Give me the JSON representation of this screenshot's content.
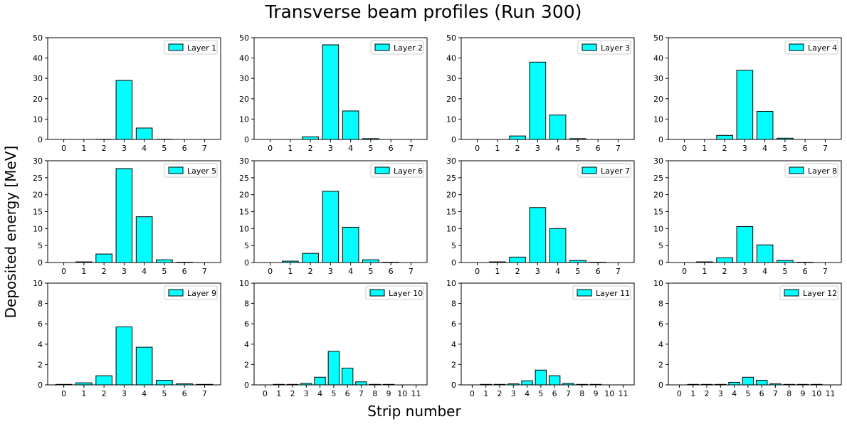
{
  "title": "Transverse beam profiles (Run 300)",
  "xlabel": "Strip number",
  "ylabel": "Deposited energy [MeV]",
  "colors": {
    "bar_fill": "#00ffff",
    "bar_edge": "#000000"
  },
  "chart_data": [
    {
      "type": "bar",
      "legend": "Layer 1",
      "legend_placement": "top-right",
      "ylim": [
        0,
        50
      ],
      "yticks": [
        0,
        10,
        20,
        30,
        40,
        50
      ],
      "categories": [
        0,
        1,
        2,
        3,
        4,
        5,
        6,
        7
      ],
      "values": [
        0,
        0,
        0.1,
        29,
        5.6,
        0.1,
        0,
        0
      ]
    },
    {
      "type": "bar",
      "legend": "Layer 2",
      "legend_placement": "top-right",
      "ylim": [
        0,
        50
      ],
      "yticks": [
        0,
        10,
        20,
        30,
        40,
        50
      ],
      "categories": [
        0,
        1,
        2,
        3,
        4,
        5,
        6,
        7
      ],
      "values": [
        0,
        0,
        1.3,
        46.5,
        14,
        0.4,
        0,
        0
      ]
    },
    {
      "type": "bar",
      "legend": "Layer 3",
      "legend_placement": "top-right",
      "ylim": [
        0,
        50
      ],
      "yticks": [
        0,
        10,
        20,
        30,
        40,
        50
      ],
      "categories": [
        0,
        1,
        2,
        3,
        4,
        5,
        6,
        7
      ],
      "values": [
        0,
        0,
        1.7,
        38,
        12,
        0.4,
        0,
        0
      ]
    },
    {
      "type": "bar",
      "legend": "Layer 4",
      "legend_placement": "top-right",
      "ylim": [
        0,
        50
      ],
      "yticks": [
        0,
        10,
        20,
        30,
        40,
        50
      ],
      "categories": [
        0,
        1,
        2,
        3,
        4,
        5,
        6,
        7
      ],
      "values": [
        0,
        0,
        2,
        34,
        13.8,
        0.6,
        0,
        0
      ]
    },
    {
      "type": "bar",
      "legend": "Layer 5",
      "legend_placement": "top-right",
      "ylim": [
        0,
        30
      ],
      "yticks": [
        0,
        5,
        10,
        15,
        20,
        25,
        30
      ],
      "categories": [
        0,
        1,
        2,
        3,
        4,
        5,
        6,
        7
      ],
      "values": [
        0,
        0.2,
        2.5,
        27.7,
        13.5,
        0.8,
        0.1,
        0
      ]
    },
    {
      "type": "bar",
      "legend": "Layer 6",
      "legend_placement": "top-right",
      "ylim": [
        0,
        30
      ],
      "yticks": [
        0,
        5,
        10,
        15,
        20,
        25,
        30
      ],
      "categories": [
        0,
        1,
        2,
        3,
        4,
        5,
        6,
        7
      ],
      "values": [
        0,
        0.4,
        2.7,
        21,
        10.4,
        0.8,
        0.1,
        0
      ]
    },
    {
      "type": "bar",
      "legend": "Layer 7",
      "legend_placement": "top-right",
      "ylim": [
        0,
        30
      ],
      "yticks": [
        0,
        5,
        10,
        15,
        20,
        25,
        30
      ],
      "categories": [
        0,
        1,
        2,
        3,
        4,
        5,
        6,
        7
      ],
      "values": [
        0,
        0.2,
        1.6,
        16.2,
        10,
        0.6,
        0.1,
        0
      ]
    },
    {
      "type": "bar",
      "legend": "Layer 8",
      "legend_placement": "top-right",
      "ylim": [
        0,
        30
      ],
      "yticks": [
        0,
        5,
        10,
        15,
        20,
        25,
        30
      ],
      "categories": [
        0,
        1,
        2,
        3,
        4,
        5,
        6,
        7
      ],
      "values": [
        0,
        0.2,
        1.4,
        10.6,
        5.2,
        0.6,
        0.1,
        0
      ]
    },
    {
      "type": "bar",
      "legend": "Layer 9",
      "legend_placement": "top-right",
      "ylim": [
        0,
        10
      ],
      "yticks": [
        0,
        2,
        4,
        6,
        8,
        10
      ],
      "categories": [
        0,
        1,
        2,
        3,
        4,
        5,
        6,
        7
      ],
      "values": [
        0.05,
        0.2,
        0.9,
        5.7,
        3.7,
        0.45,
        0.1,
        0.05
      ]
    },
    {
      "type": "bar",
      "legend": "Layer 10",
      "legend_placement": "top-right",
      "ylim": [
        0,
        10
      ],
      "yticks": [
        0,
        2,
        4,
        6,
        8,
        10
      ],
      "categories": [
        0,
        1,
        2,
        3,
        4,
        5,
        6,
        7,
        8,
        9,
        10,
        11
      ],
      "values": [
        0,
        0.05,
        0.05,
        0.15,
        0.75,
        3.3,
        1.65,
        0.3,
        0.05,
        0.05,
        0,
        0
      ]
    },
    {
      "type": "bar",
      "legend": "Layer 11",
      "legend_placement": "top-right",
      "ylim": [
        0,
        10
      ],
      "yticks": [
        0,
        2,
        4,
        6,
        8,
        10
      ],
      "categories": [
        0,
        1,
        2,
        3,
        4,
        5,
        6,
        7,
        8,
        9,
        10,
        11
      ],
      "values": [
        0,
        0.05,
        0.05,
        0.1,
        0.4,
        1.45,
        0.9,
        0.15,
        0.05,
        0.05,
        0,
        0
      ]
    },
    {
      "type": "bar",
      "legend": "Layer 12",
      "legend_placement": "top-right",
      "ylim": [
        0,
        10
      ],
      "yticks": [
        0,
        2,
        4,
        6,
        8,
        10
      ],
      "categories": [
        0,
        1,
        2,
        3,
        4,
        5,
        6,
        7,
        8,
        9,
        10,
        11
      ],
      "values": [
        0,
        0.05,
        0.05,
        0.05,
        0.25,
        0.75,
        0.45,
        0.1,
        0.05,
        0.05,
        0.05,
        0
      ]
    }
  ]
}
